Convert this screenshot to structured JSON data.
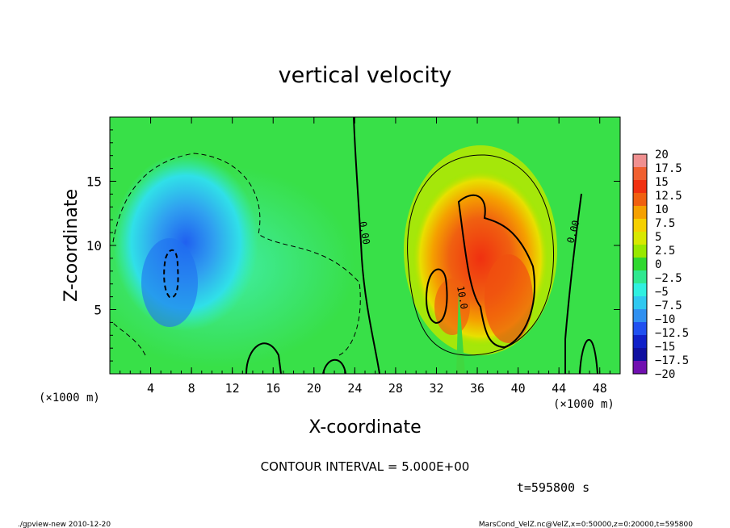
{
  "chart_data": {
    "type": "heatmap",
    "title": "vertical velocity",
    "xlabel": "X-coordinate",
    "ylabel": "Z-coordinate",
    "x_unit_left": "(×1000 m)",
    "x_unit_right": "(×1000 m)",
    "xlim": [
      0,
      50
    ],
    "ylim": [
      0,
      20
    ],
    "x_ticks": [
      4,
      8,
      12,
      16,
      20,
      24,
      28,
      32,
      36,
      40,
      44,
      48
    ],
    "y_ticks": [
      5,
      10,
      15
    ],
    "colorbar_levels": [
      "20",
      "17.5",
      "15",
      "12.5",
      "10",
      "7.5",
      "5",
      "2.5",
      "0",
      "−2.5",
      "−5",
      "−7.5",
      "−10",
      "−12.5",
      "−15",
      "−17.5",
      "−20"
    ],
    "colorbar_colors": [
      "#f09090",
      "#f06030",
      "#f03010",
      "#f06010",
      "#f5a000",
      "#f5d000",
      "#d8e800",
      "#98e800",
      "#30d830",
      "#30e890",
      "#30f0e0",
      "#30c8f0",
      "#3090f0",
      "#2050f0",
      "#1020c8",
      "#1010a0",
      "#7010b0"
    ],
    "contour_labels": [
      "0.00",
      "0.00",
      "10.0"
    ],
    "contour_interval_text": "CONTOUR INTERVAL = 5.000E+00",
    "time_text": "t=595800 s",
    "footer_left": "./gpview-new   2010-12-20",
    "footer_right": "MarsCond_VelZ.nc@VelZ,x=0:50000,z=0:20000,t=595800"
  }
}
